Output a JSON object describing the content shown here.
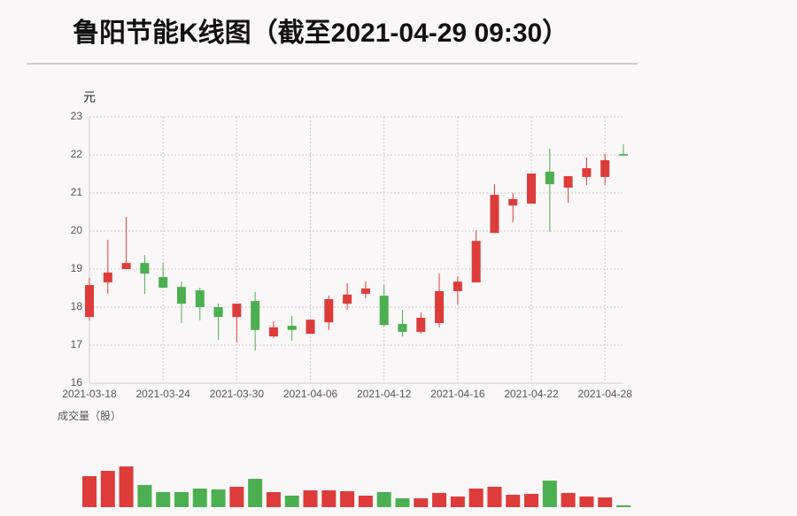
{
  "chart_data": {
    "type": "candlestick",
    "title": "鲁阳节能K线图（截至2021-04-29 09:30）",
    "y_label": "元",
    "volume_label": "成交量（股）",
    "categories": [
      "2021-03-18",
      null,
      null,
      null,
      "2021-03-24",
      null,
      null,
      null,
      "2021-03-30",
      null,
      null,
      null,
      "2021-04-06",
      null,
      null,
      null,
      "2021-04-12",
      null,
      null,
      null,
      "2021-04-16",
      null,
      null,
      null,
      "2021-04-22",
      null,
      null,
      null,
      "2021-04-28",
      null
    ],
    "open": [
      17.74,
      18.65,
      19.0,
      19.16,
      18.79,
      18.53,
      18.44,
      18.0,
      17.74,
      18.16,
      17.23,
      17.51,
      17.3,
      17.6,
      18.09,
      18.35,
      18.3,
      17.56,
      17.35,
      17.58,
      18.42,
      18.65,
      19.95,
      20.67,
      20.72,
      21.56,
      21.14,
      21.42,
      21.42,
      22.02
    ],
    "high": [
      18.77,
      19.77,
      20.37,
      19.37,
      19.16,
      18.67,
      18.51,
      18.09,
      18.09,
      18.4,
      17.63,
      17.77,
      17.67,
      18.3,
      18.63,
      18.67,
      18.58,
      17.93,
      17.86,
      18.88,
      18.81,
      20.02,
      21.23,
      21.0,
      21.51,
      22.16,
      21.44,
      21.93,
      22.02,
      22.28
    ],
    "low": [
      17.65,
      18.35,
      19.0,
      18.35,
      18.51,
      17.58,
      17.65,
      17.14,
      17.07,
      16.86,
      17.19,
      17.12,
      17.3,
      17.4,
      17.93,
      18.23,
      17.49,
      17.23,
      17.3,
      17.47,
      18.07,
      18.65,
      19.95,
      20.23,
      20.72,
      19.98,
      20.74,
      21.21,
      21.21,
      21.98
    ],
    "close": [
      18.58,
      18.91,
      19.16,
      18.88,
      18.51,
      18.09,
      18.0,
      17.74,
      18.09,
      17.4,
      17.47,
      17.4,
      17.67,
      18.21,
      18.33,
      18.49,
      17.53,
      17.35,
      17.72,
      18.42,
      18.67,
      19.74,
      20.95,
      20.84,
      21.51,
      21.23,
      21.44,
      21.65,
      21.86,
      21.98
    ],
    "volume": [
      35,
      41,
      46,
      25,
      17,
      17,
      21,
      20,
      23,
      32,
      17,
      13,
      19,
      19,
      18,
      13,
      17,
      10,
      10,
      16,
      12,
      21,
      23,
      14,
      15,
      30,
      16,
      12,
      11,
      2
    ],
    "ylim": [
      16,
      23
    ],
    "yticks": [
      16,
      17,
      18,
      19,
      20,
      21,
      22,
      23
    ],
    "up_color": "#dd3c3a",
    "down_color": "#4caf50",
    "grid": true
  }
}
